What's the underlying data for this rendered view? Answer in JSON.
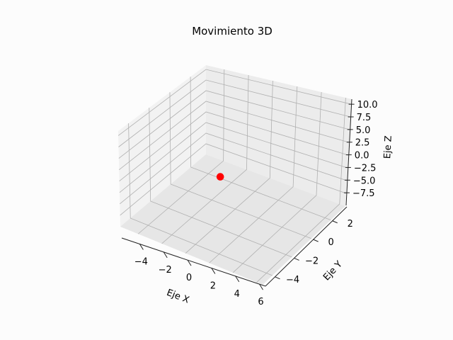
{
  "chart_data": {
    "type": "scatter",
    "title": "Movimiento 3D",
    "xlabel": "Eje X",
    "ylabel": "Eje Y",
    "zlabel": "Eje Z",
    "xlim": [
      -5.5,
      6.5
    ],
    "ylim": [
      -5,
      3.5
    ],
    "zlim": [
      -10,
      11
    ],
    "x_ticks": [
      "−4",
      "−2",
      "0",
      "2",
      "4",
      "6"
    ],
    "y_ticks": [
      "−4",
      "−2",
      "0",
      "2"
    ],
    "z_ticks": [
      "10.0",
      "7.5",
      "5.0",
      "2.5",
      "0.0",
      "−2.5",
      "−5.0",
      "−7.5"
    ],
    "points": [
      {
        "x": 0,
        "y": 0,
        "z": 0
      }
    ],
    "marker_color": "#ff0000",
    "grid": true
  }
}
